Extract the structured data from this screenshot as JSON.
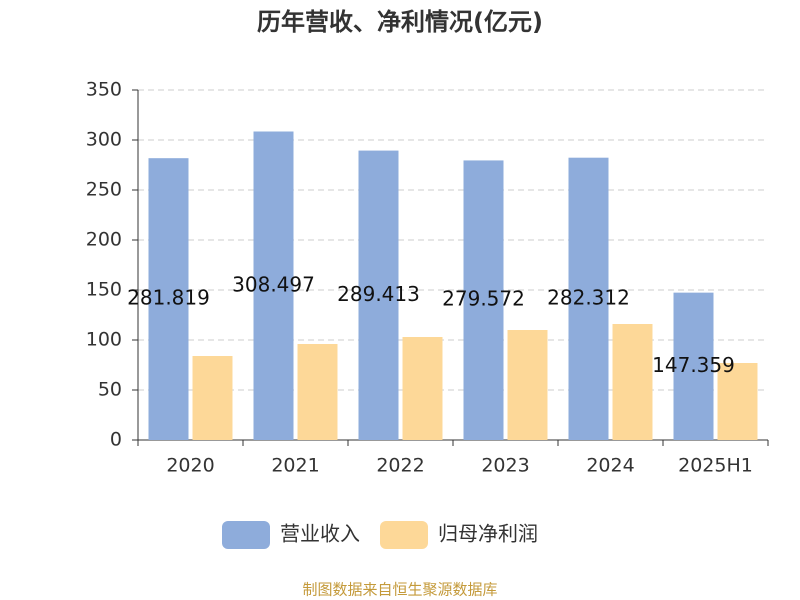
{
  "chart_data": {
    "type": "bar",
    "title": "历年营收、净利情况(亿元)",
    "categories": [
      "2020",
      "2021",
      "2022",
      "2023",
      "2024",
      "2025H1"
    ],
    "series": [
      {
        "name": "营业收入",
        "color": "#8eacdb",
        "values": [
          281.819,
          308.497,
          289.413,
          279.572,
          282.312,
          147.359
        ],
        "show_labels": true
      },
      {
        "name": "归母净利润",
        "color": "#fdd898",
        "values": [
          84,
          96,
          103,
          110,
          116,
          77
        ],
        "show_labels": false
      }
    ],
    "ylim": [
      0,
      350
    ],
    "yticks": [
      0,
      50,
      100,
      150,
      200,
      250,
      300,
      350
    ],
    "grid": true,
    "source": "制图数据来自恒生聚源数据库"
  }
}
